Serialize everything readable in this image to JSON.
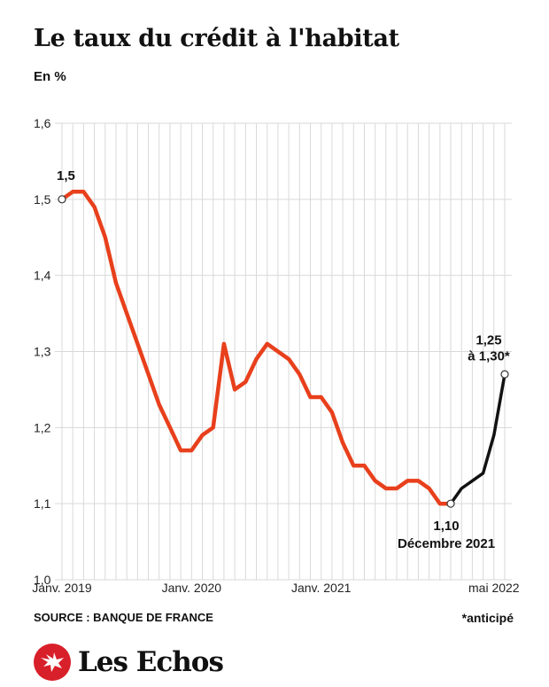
{
  "header": {
    "title": "Le taux du crédit à l'habitat",
    "unit": "En %"
  },
  "footer": {
    "source": "SOURCE : BANQUE DE FRANCE",
    "footnote": "*anticipé",
    "brand": "Les Echos"
  },
  "colors": {
    "history": "#e8401c",
    "forecast": "#111111",
    "grid": "#d9d9d9",
    "brand": "#d8202a"
  },
  "chart_data": {
    "type": "line",
    "title": "Le taux du crédit à l'habitat",
    "ylabel": "En %",
    "ylim": [
      1.0,
      1.6
    ],
    "yticks": [
      "1,0",
      "1,1",
      "1,2",
      "1,3",
      "1,4",
      "1,5",
      "1,6"
    ],
    "yticks_values": [
      1.0,
      1.1,
      1.2,
      1.3,
      1.4,
      1.5,
      1.6
    ],
    "x_ticks": [
      {
        "index": 0,
        "label": "Janv. 2019"
      },
      {
        "index": 12,
        "label": "Janv. 2020"
      },
      {
        "index": 24,
        "label": "Janv. 2021"
      },
      {
        "index": 40,
        "label": "mai 2022"
      }
    ],
    "grid": true,
    "series": [
      {
        "style": "actual",
        "x": [
          "2018-12",
          "2019-01",
          "2019-02",
          "2019-03",
          "2019-04",
          "2019-05",
          "2019-06",
          "2019-07",
          "2019-08",
          "2019-09",
          "2019-10",
          "2019-11",
          "2019-12",
          "2020-01",
          "2020-02",
          "2020-03",
          "2020-04",
          "2020-05",
          "2020-06",
          "2020-07",
          "2020-08",
          "2020-09",
          "2020-10",
          "2020-11",
          "2020-12",
          "2021-01",
          "2021-02",
          "2021-03",
          "2021-04",
          "2021-05",
          "2021-06",
          "2021-07",
          "2021-08",
          "2021-09",
          "2021-10",
          "2021-11",
          "2021-12"
        ],
        "values": [
          1.5,
          1.51,
          1.51,
          1.49,
          1.45,
          1.39,
          1.35,
          1.31,
          1.27,
          1.23,
          1.2,
          1.17,
          1.17,
          1.19,
          1.2,
          1.31,
          1.25,
          1.26,
          1.29,
          1.31,
          1.3,
          1.29,
          1.27,
          1.24,
          1.24,
          1.22,
          1.18,
          1.15,
          1.15,
          1.13,
          1.12,
          1.12,
          1.13,
          1.13,
          1.12,
          1.1,
          1.1
        ]
      },
      {
        "style": "forecast",
        "x": [
          "2021-12",
          "2022-01",
          "2022-02",
          "2022-03",
          "2022-04",
          "2022-05"
        ],
        "values": [
          1.1,
          1.12,
          1.13,
          1.14,
          1.19,
          1.27
        ]
      }
    ],
    "annotations": [
      {
        "label": "1,5",
        "x": "2018-12",
        "value": 1.5
      },
      {
        "label": "1,10",
        "sublabel": "Décembre 2021",
        "x": "2021-12",
        "value": 1.1
      },
      {
        "label": "1,25",
        "sublabel": "à 1,30*",
        "x": "2022-05",
        "value": 1.27
      }
    ]
  }
}
